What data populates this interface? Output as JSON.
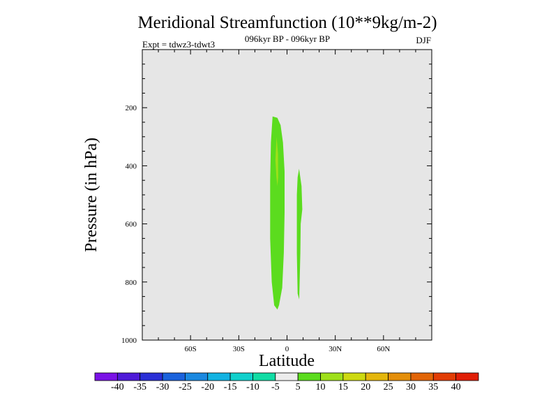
{
  "chart_data": {
    "type": "contour",
    "title": "Meridional Streamfunction (10**9kg/m-2)",
    "subtitle": "096kyr BP - 096kyr BP",
    "left_label": "Expt = tdwz3-tdwt3",
    "right_label": "DJF",
    "xlabel": "Latitude",
    "ylabel": "Pressure (in hPa)",
    "xlim": [
      -90,
      90
    ],
    "ylim": [
      1000,
      0
    ],
    "x_ticks": [
      {
        "value": -60,
        "label": "60S"
      },
      {
        "value": -30,
        "label": "30S"
      },
      {
        "value": 0,
        "label": "0"
      },
      {
        "value": 30,
        "label": "30N"
      },
      {
        "value": 60,
        "label": "60N"
      }
    ],
    "y_ticks": [
      {
        "value": 200,
        "label": "200"
      },
      {
        "value": 400,
        "label": "400"
      },
      {
        "value": 600,
        "label": "600"
      },
      {
        "value": 800,
        "label": "800"
      },
      {
        "value": 1000,
        "label": "1000"
      }
    ],
    "background_color": "#e6e6e6",
    "regions": [
      {
        "level": "5 to 10",
        "color": "#5bdc1e",
        "outline": [
          [
            -9,
            230
          ],
          [
            -6,
            235
          ],
          [
            -4,
            260
          ],
          [
            -2.5,
            320
          ],
          [
            -1.5,
            420
          ],
          [
            -1.5,
            560
          ],
          [
            -2,
            700
          ],
          [
            -3,
            820
          ],
          [
            -5,
            880
          ],
          [
            -6,
            895
          ],
          [
            -8,
            880
          ],
          [
            -9.5,
            800
          ],
          [
            -10.5,
            650
          ],
          [
            -10.5,
            450
          ],
          [
            -10,
            320
          ]
        ]
      },
      {
        "level": "10 to 15",
        "color": "#9ee01a",
        "outline": [
          [
            -6.5,
            300
          ],
          [
            -5.6,
            360
          ],
          [
            -5.5,
            440
          ],
          [
            -6,
            470
          ],
          [
            -6.6,
            440
          ],
          [
            -7.2,
            380
          ]
        ]
      },
      {
        "level": "5 to 10",
        "color": "#5bdc1e",
        "outline": [
          [
            7.5,
            410
          ],
          [
            9,
            470
          ],
          [
            9.5,
            550
          ],
          [
            8.5,
            600
          ],
          [
            8.3,
            700
          ],
          [
            7.6,
            860
          ],
          [
            6.6,
            840
          ],
          [
            6.1,
            700
          ],
          [
            6.1,
            500
          ],
          [
            6.6,
            440
          ]
        ]
      }
    ],
    "colorbar": {
      "labels": [
        "-40",
        "-35",
        "-30",
        "-25",
        "-20",
        "-15",
        "-10",
        "-5",
        "5",
        "10",
        "15",
        "20",
        "25",
        "30",
        "35",
        "40"
      ],
      "colors": [
        "#7a12e6",
        "#4e1ad8",
        "#2a2fd6",
        "#1a62dc",
        "#1a88e0",
        "#12b2e2",
        "#10d0cc",
        "#10dca4",
        "#ececec",
        "#5bdc1e",
        "#9ee01a",
        "#cdd910",
        "#e4b60c",
        "#e48e0a",
        "#e26406",
        "#e23c04",
        "#e01e06"
      ]
    }
  }
}
